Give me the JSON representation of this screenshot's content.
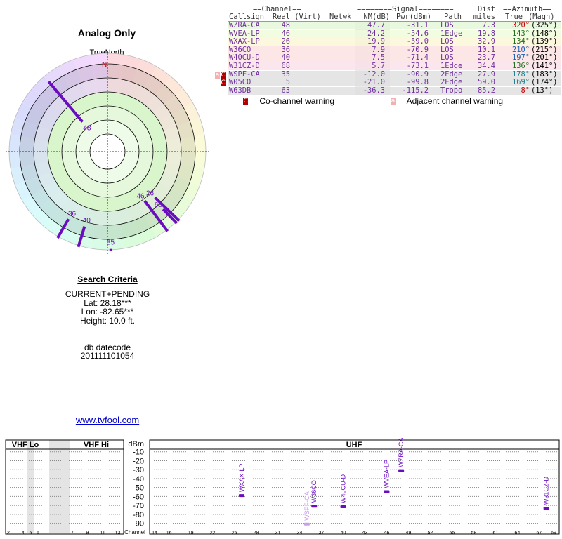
{
  "polar": {
    "title": "Analog Only",
    "north_label": "TrueNorth",
    "north_marker": "N"
  },
  "table": {
    "header": {
      "channel_group": "==Channel==",
      "signal_group": "========Signal========",
      "dist": "Dist",
      "azimuth_group": "==Azimuth==",
      "callsign": "Callsign",
      "real_virt": "Real (Virt)",
      "netwk": "Netwk",
      "nm": "NM(dB)",
      "pwr": "Pwr(dBm)",
      "path": "Path",
      "miles": "miles",
      "true": "True",
      "magn": "(Magn)"
    },
    "rows": [
      {
        "callsign": "WZRA-CA",
        "real": "48",
        "nm": "47.7",
        "pwr": "-31.1",
        "path": "LOS",
        "dist": "7.3",
        "true": "320°",
        "magn": "(325°)"
      },
      {
        "callsign": "WVEA-LP",
        "real": "46",
        "nm": "24.2",
        "pwr": "-54.6",
        "path": "1Edge",
        "dist": "19.8",
        "true": "143°",
        "magn": "(148°)"
      },
      {
        "callsign": "WXAX-LP",
        "real": "26",
        "nm": "19.9",
        "pwr": "-59.0",
        "path": "LOS",
        "dist": "32.9",
        "true": "134°",
        "magn": "(139°)"
      },
      {
        "callsign": "W36CO",
        "real": "36",
        "nm": "7.9",
        "pwr": "-70.9",
        "path": "LOS",
        "dist": "10.1",
        "true": "210°",
        "magn": "(215°)"
      },
      {
        "callsign": "W40CU-D",
        "real": "40",
        "nm": "7.5",
        "pwr": "-71.4",
        "path": "LOS",
        "dist": "23.7",
        "true": "197°",
        "magn": "(201°)"
      },
      {
        "callsign": "W31CZ-D",
        "real": "68",
        "nm": "5.7",
        "pwr": "-73.1",
        "path": "1Edge",
        "dist": "34.4",
        "true": "136°",
        "magn": "(141°)"
      },
      {
        "callsign": "WSPF-CA",
        "real": "35",
        "nm": "-12.0",
        "pwr": "-90.9",
        "path": "2Edge",
        "dist": "27.9",
        "true": "178°",
        "magn": "(183°)",
        "flags": [
          "a",
          "C"
        ]
      },
      {
        "callsign": "W05CO",
        "real": "5",
        "nm": "-21.0",
        "pwr": "-99.8",
        "path": "2Edge",
        "dist": "59.0",
        "true": "169°",
        "magn": "(174°)",
        "flags": [
          "C"
        ]
      },
      {
        "callsign": "W63DB",
        "real": "63",
        "nm": "-36.3",
        "pwr": "-115.2",
        "path": "Tropo",
        "dist": "85.2",
        "true": "8°",
        "magn": "(13°)"
      }
    ],
    "legend": [
      {
        "marker": "C",
        "text": "= Co-channel warning"
      },
      {
        "marker": "a",
        "text": "= Adjacent channel warning"
      }
    ]
  },
  "criteria": {
    "title": "Search Criteria",
    "lines": [
      "CURRENT+PENDING",
      "Lat: 28.18***",
      "Lon: -82.65***",
      "Height: 10.0 ft."
    ],
    "datecode_label": "db datecode",
    "datecode": "201111101054",
    "link": "www.tvfool.com"
  },
  "spectrum": {
    "vhf_lo": "VHF Lo",
    "vhf_hi": "VHF Hi",
    "uhf": "UHF",
    "unit": "dBm",
    "x_label": "Channel",
    "ylim": [
      -95,
      0
    ],
    "yticks": [
      -10,
      -20,
      -30,
      -40,
      -50,
      -60,
      -70,
      -80,
      -90
    ],
    "vhf_ticks": [
      2,
      4,
      5,
      6,
      7,
      9,
      11,
      13
    ],
    "uhf_ticks": [
      14,
      16,
      19,
      22,
      25,
      28,
      31,
      34,
      37,
      40,
      43,
      46,
      49,
      52,
      55,
      58,
      61,
      64,
      67,
      69
    ]
  }
}
